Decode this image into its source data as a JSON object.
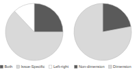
{
  "chart_data": [
    {
      "type": "pie",
      "categories": [
        "Both",
        "Issue-Specific",
        "Left-right"
      ],
      "values": [
        25,
        63,
        12
      ],
      "colors": [
        "#5a5a5a",
        "#d9d9d9",
        "#ffffff"
      ],
      "legend": "bottom"
    },
    {
      "type": "pie",
      "categories": [
        "Non-dimension",
        "Dimension"
      ],
      "values": [
        22,
        78
      ],
      "colors": [
        "#5a5a5a",
        "#d9d9d9"
      ],
      "legend": "bottom"
    }
  ]
}
